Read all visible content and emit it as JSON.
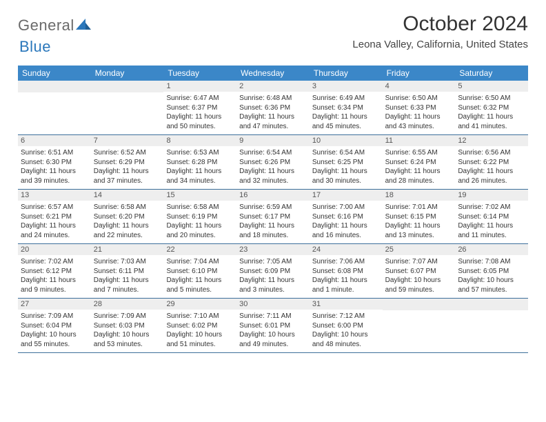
{
  "logo": {
    "part1": "General",
    "part2": "Blue"
  },
  "title": "October 2024",
  "location": "Leona Valley, California, United States",
  "colors": {
    "header_bg": "#3b87c8",
    "header_text": "#ffffff",
    "daynum_bg": "#eeeeee",
    "daynum_text": "#555555",
    "week_border": "#3b6e9a",
    "body_text": "#333333",
    "logo_gray": "#6a6a6a",
    "logo_blue": "#2a77bb"
  },
  "typography": {
    "title_fontsize": 30,
    "location_fontsize": 15,
    "dow_fontsize": 12,
    "daynum_fontsize": 11,
    "cell_fontsize": 10
  },
  "days_of_week": [
    "Sunday",
    "Monday",
    "Tuesday",
    "Wednesday",
    "Thursday",
    "Friday",
    "Saturday"
  ],
  "weeks": [
    [
      {
        "n": "",
        "sr": "",
        "ss": "",
        "dl": ""
      },
      {
        "n": "",
        "sr": "",
        "ss": "",
        "dl": ""
      },
      {
        "n": "1",
        "sr": "Sunrise: 6:47 AM",
        "ss": "Sunset: 6:37 PM",
        "dl": "Daylight: 11 hours and 50 minutes."
      },
      {
        "n": "2",
        "sr": "Sunrise: 6:48 AM",
        "ss": "Sunset: 6:36 PM",
        "dl": "Daylight: 11 hours and 47 minutes."
      },
      {
        "n": "3",
        "sr": "Sunrise: 6:49 AM",
        "ss": "Sunset: 6:34 PM",
        "dl": "Daylight: 11 hours and 45 minutes."
      },
      {
        "n": "4",
        "sr": "Sunrise: 6:50 AM",
        "ss": "Sunset: 6:33 PM",
        "dl": "Daylight: 11 hours and 43 minutes."
      },
      {
        "n": "5",
        "sr": "Sunrise: 6:50 AM",
        "ss": "Sunset: 6:32 PM",
        "dl": "Daylight: 11 hours and 41 minutes."
      }
    ],
    [
      {
        "n": "6",
        "sr": "Sunrise: 6:51 AM",
        "ss": "Sunset: 6:30 PM",
        "dl": "Daylight: 11 hours and 39 minutes."
      },
      {
        "n": "7",
        "sr": "Sunrise: 6:52 AM",
        "ss": "Sunset: 6:29 PM",
        "dl": "Daylight: 11 hours and 37 minutes."
      },
      {
        "n": "8",
        "sr": "Sunrise: 6:53 AM",
        "ss": "Sunset: 6:28 PM",
        "dl": "Daylight: 11 hours and 34 minutes."
      },
      {
        "n": "9",
        "sr": "Sunrise: 6:54 AM",
        "ss": "Sunset: 6:26 PM",
        "dl": "Daylight: 11 hours and 32 minutes."
      },
      {
        "n": "10",
        "sr": "Sunrise: 6:54 AM",
        "ss": "Sunset: 6:25 PM",
        "dl": "Daylight: 11 hours and 30 minutes."
      },
      {
        "n": "11",
        "sr": "Sunrise: 6:55 AM",
        "ss": "Sunset: 6:24 PM",
        "dl": "Daylight: 11 hours and 28 minutes."
      },
      {
        "n": "12",
        "sr": "Sunrise: 6:56 AM",
        "ss": "Sunset: 6:22 PM",
        "dl": "Daylight: 11 hours and 26 minutes."
      }
    ],
    [
      {
        "n": "13",
        "sr": "Sunrise: 6:57 AM",
        "ss": "Sunset: 6:21 PM",
        "dl": "Daylight: 11 hours and 24 minutes."
      },
      {
        "n": "14",
        "sr": "Sunrise: 6:58 AM",
        "ss": "Sunset: 6:20 PM",
        "dl": "Daylight: 11 hours and 22 minutes."
      },
      {
        "n": "15",
        "sr": "Sunrise: 6:58 AM",
        "ss": "Sunset: 6:19 PM",
        "dl": "Daylight: 11 hours and 20 minutes."
      },
      {
        "n": "16",
        "sr": "Sunrise: 6:59 AM",
        "ss": "Sunset: 6:17 PM",
        "dl": "Daylight: 11 hours and 18 minutes."
      },
      {
        "n": "17",
        "sr": "Sunrise: 7:00 AM",
        "ss": "Sunset: 6:16 PM",
        "dl": "Daylight: 11 hours and 16 minutes."
      },
      {
        "n": "18",
        "sr": "Sunrise: 7:01 AM",
        "ss": "Sunset: 6:15 PM",
        "dl": "Daylight: 11 hours and 13 minutes."
      },
      {
        "n": "19",
        "sr": "Sunrise: 7:02 AM",
        "ss": "Sunset: 6:14 PM",
        "dl": "Daylight: 11 hours and 11 minutes."
      }
    ],
    [
      {
        "n": "20",
        "sr": "Sunrise: 7:02 AM",
        "ss": "Sunset: 6:12 PM",
        "dl": "Daylight: 11 hours and 9 minutes."
      },
      {
        "n": "21",
        "sr": "Sunrise: 7:03 AM",
        "ss": "Sunset: 6:11 PM",
        "dl": "Daylight: 11 hours and 7 minutes."
      },
      {
        "n": "22",
        "sr": "Sunrise: 7:04 AM",
        "ss": "Sunset: 6:10 PM",
        "dl": "Daylight: 11 hours and 5 minutes."
      },
      {
        "n": "23",
        "sr": "Sunrise: 7:05 AM",
        "ss": "Sunset: 6:09 PM",
        "dl": "Daylight: 11 hours and 3 minutes."
      },
      {
        "n": "24",
        "sr": "Sunrise: 7:06 AM",
        "ss": "Sunset: 6:08 PM",
        "dl": "Daylight: 11 hours and 1 minute."
      },
      {
        "n": "25",
        "sr": "Sunrise: 7:07 AM",
        "ss": "Sunset: 6:07 PM",
        "dl": "Daylight: 10 hours and 59 minutes."
      },
      {
        "n": "26",
        "sr": "Sunrise: 7:08 AM",
        "ss": "Sunset: 6:05 PM",
        "dl": "Daylight: 10 hours and 57 minutes."
      }
    ],
    [
      {
        "n": "27",
        "sr": "Sunrise: 7:09 AM",
        "ss": "Sunset: 6:04 PM",
        "dl": "Daylight: 10 hours and 55 minutes."
      },
      {
        "n": "28",
        "sr": "Sunrise: 7:09 AM",
        "ss": "Sunset: 6:03 PM",
        "dl": "Daylight: 10 hours and 53 minutes."
      },
      {
        "n": "29",
        "sr": "Sunrise: 7:10 AM",
        "ss": "Sunset: 6:02 PM",
        "dl": "Daylight: 10 hours and 51 minutes."
      },
      {
        "n": "30",
        "sr": "Sunrise: 7:11 AM",
        "ss": "Sunset: 6:01 PM",
        "dl": "Daylight: 10 hours and 49 minutes."
      },
      {
        "n": "31",
        "sr": "Sunrise: 7:12 AM",
        "ss": "Sunset: 6:00 PM",
        "dl": "Daylight: 10 hours and 48 minutes."
      },
      {
        "n": "",
        "sr": "",
        "ss": "",
        "dl": ""
      },
      {
        "n": "",
        "sr": "",
        "ss": "",
        "dl": ""
      }
    ]
  ]
}
